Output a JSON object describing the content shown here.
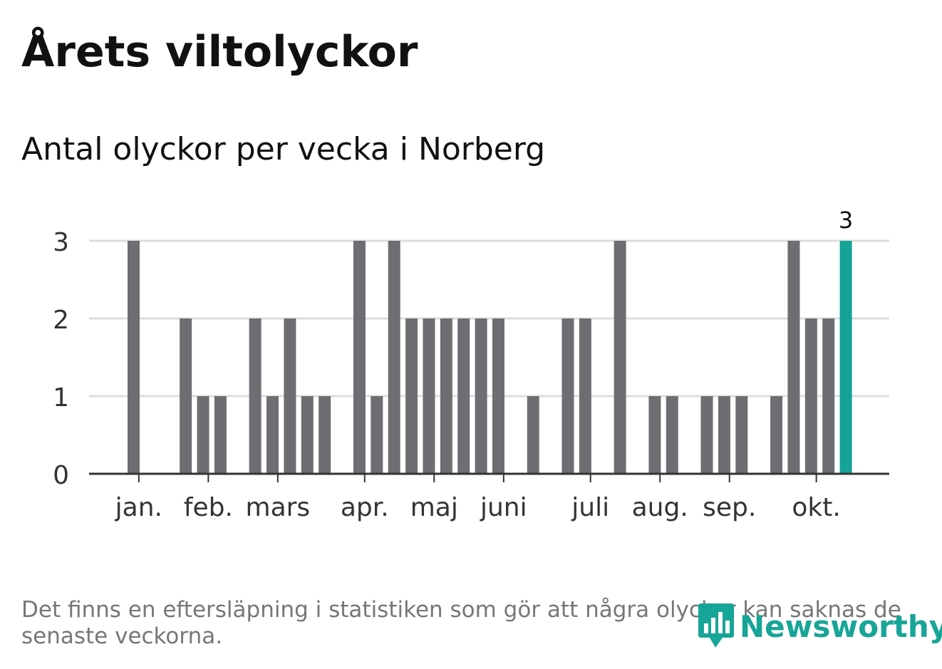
{
  "title": "Årets viltolyckor",
  "subtitle": "Antal olyckor per vecka i Norberg",
  "footnote": "Det finns en eftersläpning i statistiken som gör att några olyckor kan saknas de senaste veckorna.",
  "logo_text": "Newsworthy",
  "colors": {
    "bar": "#6e6d72",
    "highlight": "#14a396",
    "grid": "#dddddd",
    "axis": "#333333",
    "text": "#333333"
  },
  "chart_data": {
    "type": "bar",
    "title": "Antal olyckor per vecka i Norberg",
    "xlabel": "",
    "ylabel": "",
    "ylim": [
      0,
      3
    ],
    "y_ticks": [
      0,
      1,
      2,
      3
    ],
    "grid": true,
    "weeks": [
      1,
      2,
      3,
      4,
      5,
      6,
      7,
      8,
      9,
      10,
      11,
      12,
      13,
      14,
      15,
      16,
      17,
      18,
      19,
      20,
      21,
      22,
      23,
      24,
      25,
      26,
      27,
      28,
      29,
      30,
      31,
      32,
      33,
      34,
      35,
      36,
      37,
      38,
      39,
      40,
      41,
      42
    ],
    "values": [
      3,
      0,
      0,
      2,
      1,
      1,
      0,
      2,
      1,
      2,
      1,
      1,
      0,
      3,
      1,
      3,
      2,
      2,
      2,
      2,
      2,
      2,
      0,
      1,
      0,
      2,
      2,
      0,
      3,
      0,
      1,
      1,
      0,
      1,
      1,
      1,
      0,
      1,
      3,
      2,
      2,
      3
    ],
    "highlight_index": 41,
    "highlight_label": "3",
    "month_labels": [
      {
        "label": "jan.",
        "week": 1.3
      },
      {
        "label": "feb.",
        "week": 5.3
      },
      {
        "label": "mars",
        "week": 9.3
      },
      {
        "label": "apr.",
        "week": 14.3
      },
      {
        "label": "maj",
        "week": 18.3
      },
      {
        "label": "juni",
        "week": 22.3
      },
      {
        "label": "juli",
        "week": 27.3
      },
      {
        "label": "aug.",
        "week": 31.3
      },
      {
        "label": "sep.",
        "week": 35.3
      },
      {
        "label": "okt.",
        "week": 40.3
      }
    ]
  }
}
